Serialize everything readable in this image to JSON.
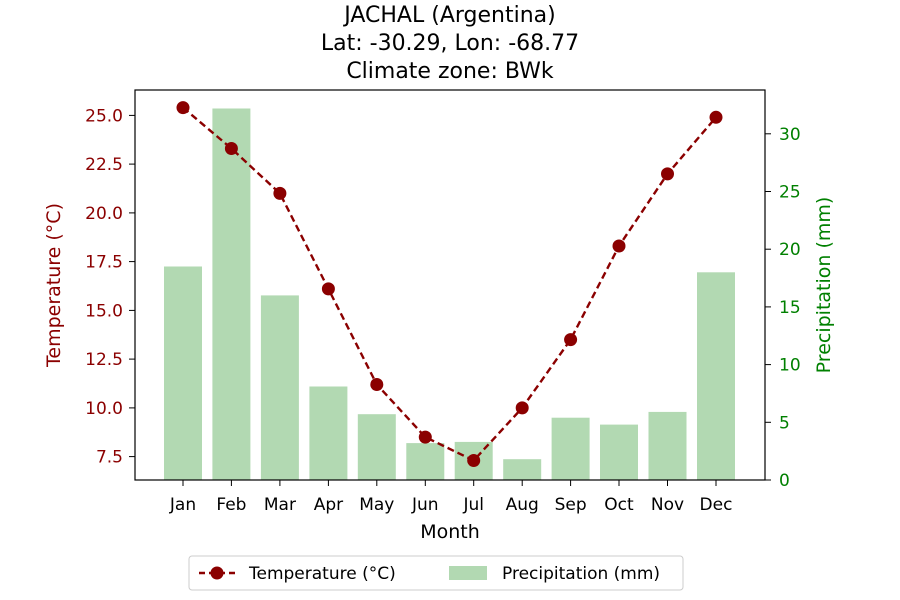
{
  "chart_data": {
    "type": "bar+line",
    "title_lines": [
      "JACHAL (Argentina)",
      "Lat: -30.29, Lon: -68.77",
      "Climate zone: BWk"
    ],
    "xlabel": "Month",
    "ylabel_left": "Temperature (°C)",
    "ylabel_right": "Precipitation (mm)",
    "categories": [
      "Jan",
      "Feb",
      "Mar",
      "Apr",
      "May",
      "Jun",
      "Jul",
      "Aug",
      "Sep",
      "Oct",
      "Nov",
      "Dec"
    ],
    "temperature": {
      "name": "Temperature (°C)",
      "values": [
        25.4,
        23.3,
        21.0,
        16.1,
        11.2,
        8.5,
        7.3,
        10.0,
        13.5,
        18.3,
        22.0,
        24.9
      ],
      "ylim": [
        6.3,
        26.3
      ],
      "ticks": [
        "7.5",
        "10.0",
        "12.5",
        "15.0",
        "17.5",
        "20.0",
        "22.5",
        "25.0"
      ]
    },
    "precipitation": {
      "name": "Precipitation (mm)",
      "values": [
        18.5,
        32.2,
        16.0,
        8.1,
        5.7,
        3.2,
        3.3,
        1.8,
        5.4,
        4.8,
        5.9,
        18.0
      ],
      "ylim": [
        0,
        33.8
      ],
      "ticks": [
        "0",
        "5",
        "10",
        "15",
        "20",
        "25",
        "30"
      ]
    },
    "legend_position": "bottom-center",
    "colors": {
      "temperature": "#8b0000",
      "precipitation": "#b2d9b2",
      "left_axis_text": "#8b0000",
      "right_axis_text": "#008000"
    }
  }
}
